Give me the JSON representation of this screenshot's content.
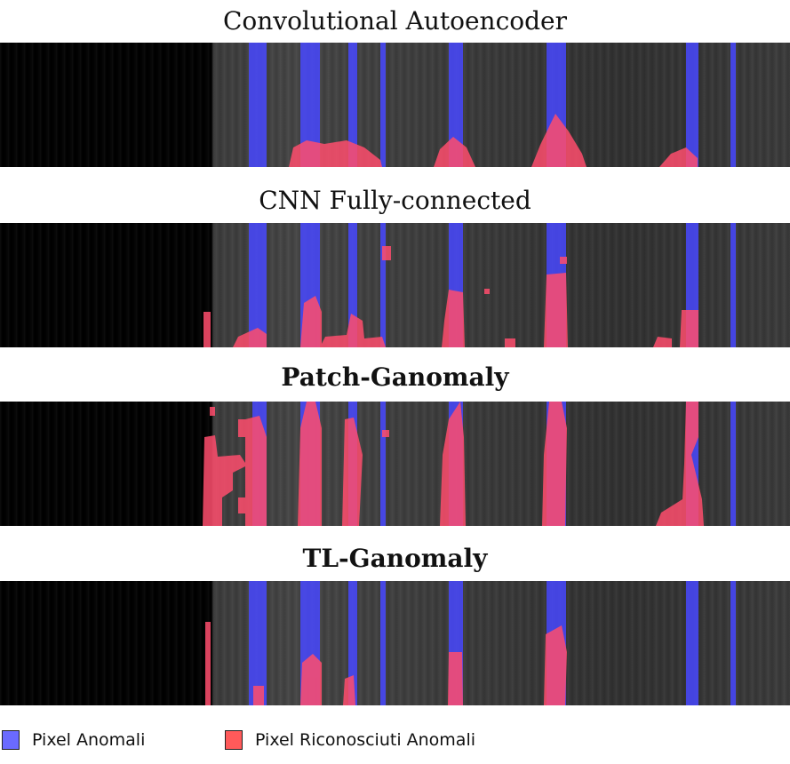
{
  "panels": [
    {
      "title": "Convolutional Autoencoder",
      "bold": false
    },
    {
      "title": "CNN Fully-connected",
      "bold": false
    },
    {
      "title": "Patch-Ganomaly",
      "bold": true
    },
    {
      "title": "TL-Ganomaly",
      "bold": true
    }
  ],
  "legend": {
    "anomalous_label": "Pixel Anomali",
    "detected_label": "Pixel Riconosciuti Anomali",
    "anomalous_color": "#6a6aff",
    "detected_color": "#ff5a5a"
  }
}
